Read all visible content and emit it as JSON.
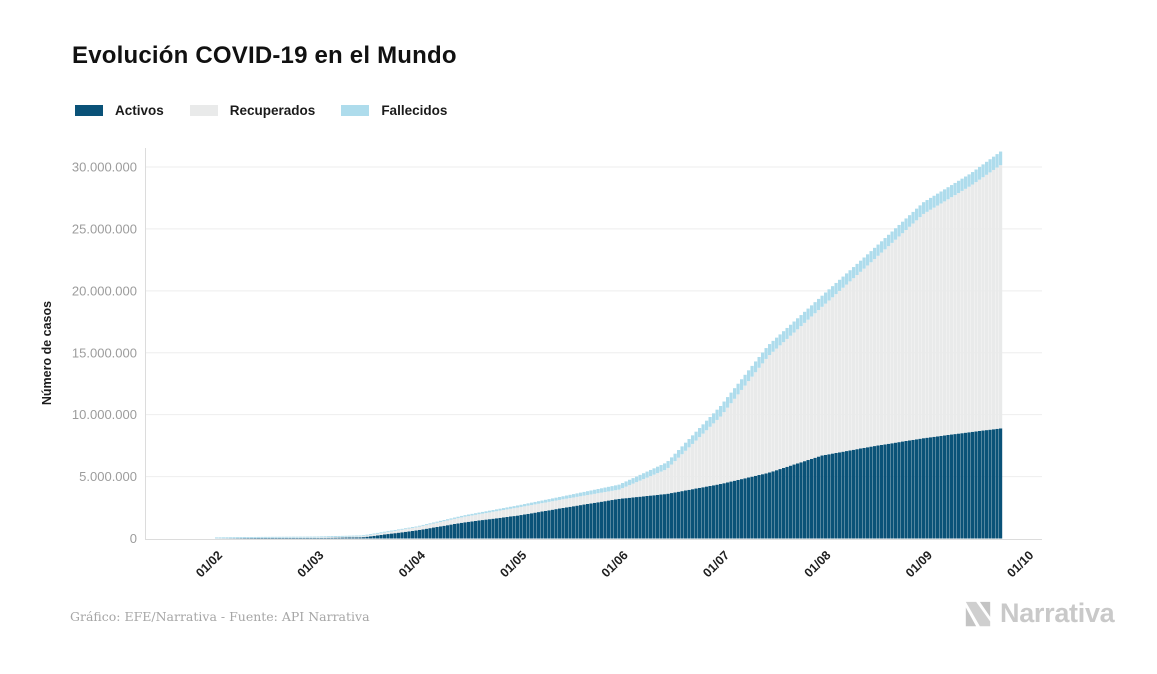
{
  "header": {
    "title": "Evolución COVID-19 en el Mundo"
  },
  "footer": {
    "credit": "Gráfico: EFE/Narrativa - Fuente: API Narrativa",
    "brand": "Narrativa"
  },
  "icons": {
    "brand_mark": "narrativa-n-mark"
  },
  "colors": {
    "activos": "#0a5278",
    "recuperados": "#e9eaea",
    "fallecidos": "#aedcec",
    "gridline": "#eeeeee",
    "axis_line": "#dcdcdc",
    "tick_text": "#9c9c9c",
    "brand_gray": "#c9c9c9"
  },
  "chart_data": {
    "type": "bar",
    "stacked": true,
    "title": "Evolución COVID-19 en el Mundo",
    "xlabel": "",
    "ylabel": "Número de casos",
    "ylim": [
      0,
      31500000
    ],
    "grid": "horizontal",
    "legend_position": "top-left",
    "x_tick_labels": [
      "01/02",
      "01/03",
      "01/04",
      "01/05",
      "01/06",
      "01/07",
      "01/08",
      "01/09",
      "01/10"
    ],
    "y_ticks": [
      {
        "value": 0,
        "label": "0"
      },
      {
        "value": 5000000,
        "label": "5.000.000"
      },
      {
        "value": 10000000,
        "label": "10.000.000"
      },
      {
        "value": 15000000,
        "label": "15.000.000"
      },
      {
        "value": 20000000,
        "label": "20.000.000"
      },
      {
        "value": 25000000,
        "label": "25.000.000"
      },
      {
        "value": 30000000,
        "label": "30.000.000"
      }
    ],
    "categories": [
      "01/02",
      "15/02",
      "01/03",
      "15/03",
      "01/04",
      "15/04",
      "01/05",
      "15/05",
      "01/06",
      "15/06",
      "01/07",
      "15/07",
      "01/08",
      "15/08",
      "01/09",
      "15/09",
      "24/09"
    ],
    "x_months": [
      0,
      0.47,
      1,
      1.47,
      2,
      2.47,
      3,
      3.47,
      4,
      4.47,
      5,
      5.47,
      6,
      6.47,
      7,
      7.47,
      7.77
    ],
    "series": [
      {
        "name": "Activos",
        "color": "#0a5278",
        "values": [
          10000,
          45000,
          40000,
          100000,
          650000,
          1300000,
          1850000,
          2500000,
          3200000,
          3600000,
          4400000,
          5300000,
          6700000,
          7400000,
          8100000,
          8600000,
          8900000
        ]
      },
      {
        "name": "Recuperados",
        "color": "#e9eaea",
        "values": [
          3000,
          12000,
          43000,
          80000,
          250000,
          450000,
          650000,
          700000,
          750000,
          2000000,
          5450000,
          9420000,
          12000000,
          14800000,
          18100000,
          19900000,
          21300000
        ]
      },
      {
        "name": "Fallecidos",
        "color": "#aedcec",
        "values": [
          2000,
          2000,
          3000,
          8000,
          70000,
          120000,
          170000,
          250000,
          400000,
          550000,
          850000,
          880000,
          900000,
          900000,
          950000,
          1000000,
          1100000
        ]
      }
    ]
  }
}
